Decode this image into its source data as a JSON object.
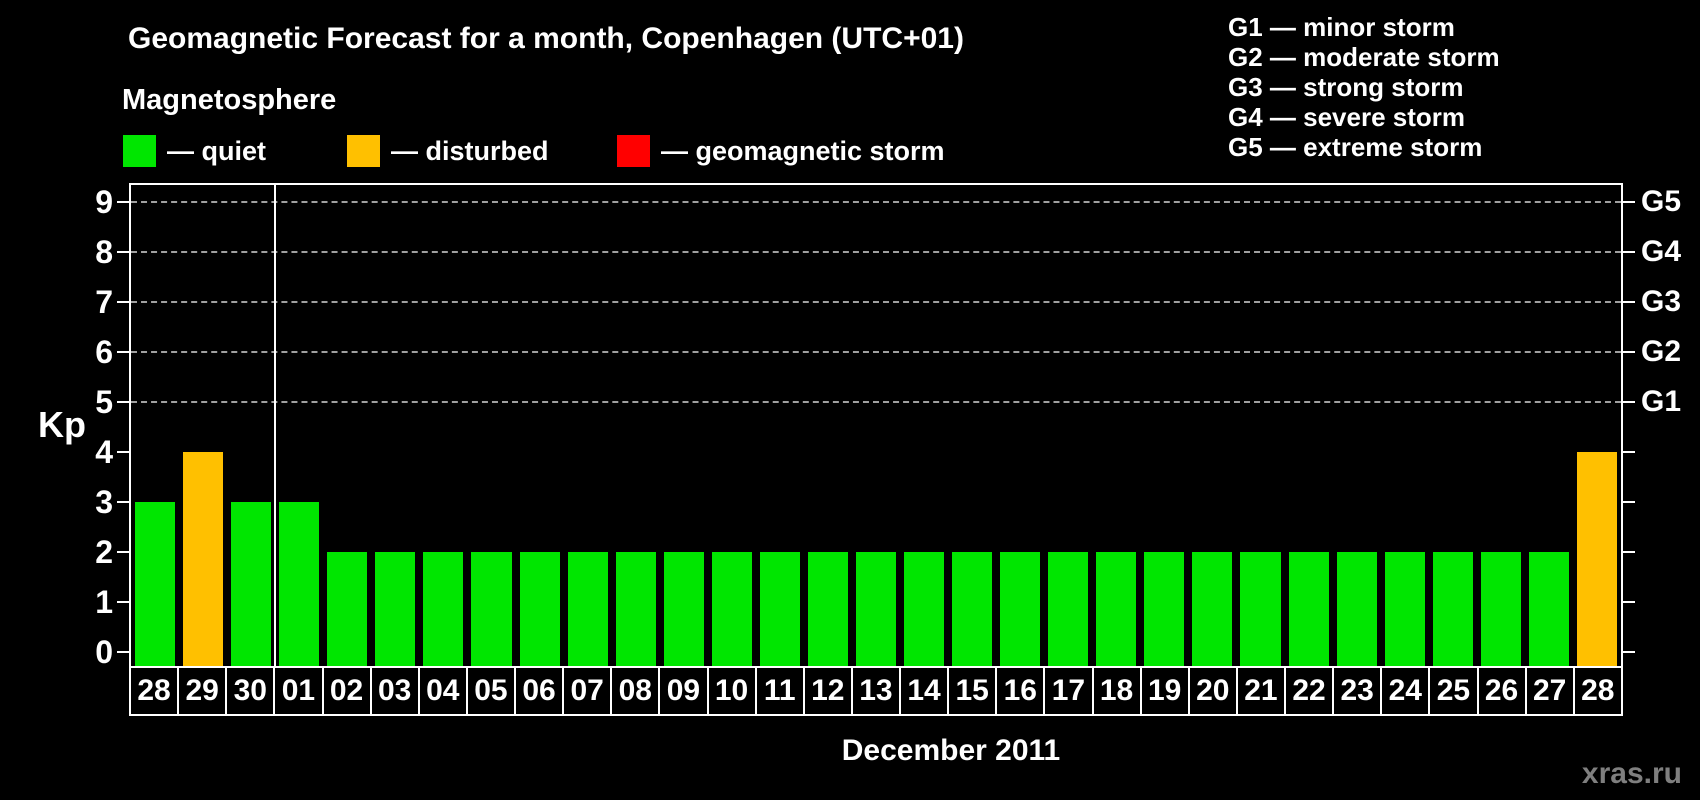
{
  "title": "Geomagnetic Forecast for a month, Copenhagen (UTC+01)",
  "subtitle": "Magnetosphere",
  "watermark": "xras.ru",
  "legend": {
    "items": [
      {
        "key": "quiet",
        "label": "— quiet",
        "color": "#00e600"
      },
      {
        "key": "disturbed",
        "label": "— disturbed",
        "color": "#ffc000"
      },
      {
        "key": "storm",
        "label": "— geomagnetic storm",
        "color": "#ff0000"
      }
    ]
  },
  "g_scale_legend": [
    "G1 — minor storm",
    "G2 — moderate storm",
    "G3 — strong storm",
    "G4 — severe storm",
    "G5 — extreme storm"
  ],
  "chart_data": {
    "type": "bar",
    "title": "Geomagnetic Forecast for a month, Copenhagen (UTC+01)",
    "xlabel": "December 2011",
    "ylabel": "Kp",
    "ylim": [
      0,
      9
    ],
    "y_ticks": [
      0,
      1,
      2,
      3,
      4,
      5,
      6,
      7,
      8,
      9
    ],
    "grid_kp": [
      5,
      6,
      7,
      8,
      9
    ],
    "grid_style": "dashed horizontal gray lines at Kp 5-9 only",
    "legend_position": "top",
    "month_separator_after_index": 2,
    "categories": [
      "28",
      "29",
      "30",
      "01",
      "02",
      "03",
      "04",
      "05",
      "06",
      "07",
      "08",
      "09",
      "10",
      "11",
      "12",
      "13",
      "14",
      "15",
      "16",
      "17",
      "18",
      "19",
      "20",
      "21",
      "22",
      "23",
      "24",
      "25",
      "26",
      "27",
      "28"
    ],
    "values": [
      3,
      4,
      3,
      3,
      2,
      2,
      2,
      2,
      2,
      2,
      2,
      2,
      2,
      2,
      2,
      2,
      2,
      2,
      2,
      2,
      2,
      2,
      2,
      2,
      2,
      2,
      2,
      2,
      2,
      2,
      4
    ],
    "statuses": [
      "quiet",
      "disturbed",
      "quiet",
      "quiet",
      "quiet",
      "quiet",
      "quiet",
      "quiet",
      "quiet",
      "quiet",
      "quiet",
      "quiet",
      "quiet",
      "quiet",
      "quiet",
      "quiet",
      "quiet",
      "quiet",
      "quiet",
      "quiet",
      "quiet",
      "quiet",
      "quiet",
      "quiet",
      "quiet",
      "quiet",
      "quiet",
      "quiet",
      "quiet",
      "quiet",
      "disturbed"
    ],
    "colors": {
      "quiet": "#00e600",
      "disturbed": "#ffc000",
      "storm": "#ff0000"
    },
    "right_axis_labels": [
      {
        "kp": 5,
        "label": "G1"
      },
      {
        "kp": 6,
        "label": "G2"
      },
      {
        "kp": 7,
        "label": "G3"
      },
      {
        "kp": 8,
        "label": "G4"
      },
      {
        "kp": 9,
        "label": "G5"
      }
    ]
  }
}
